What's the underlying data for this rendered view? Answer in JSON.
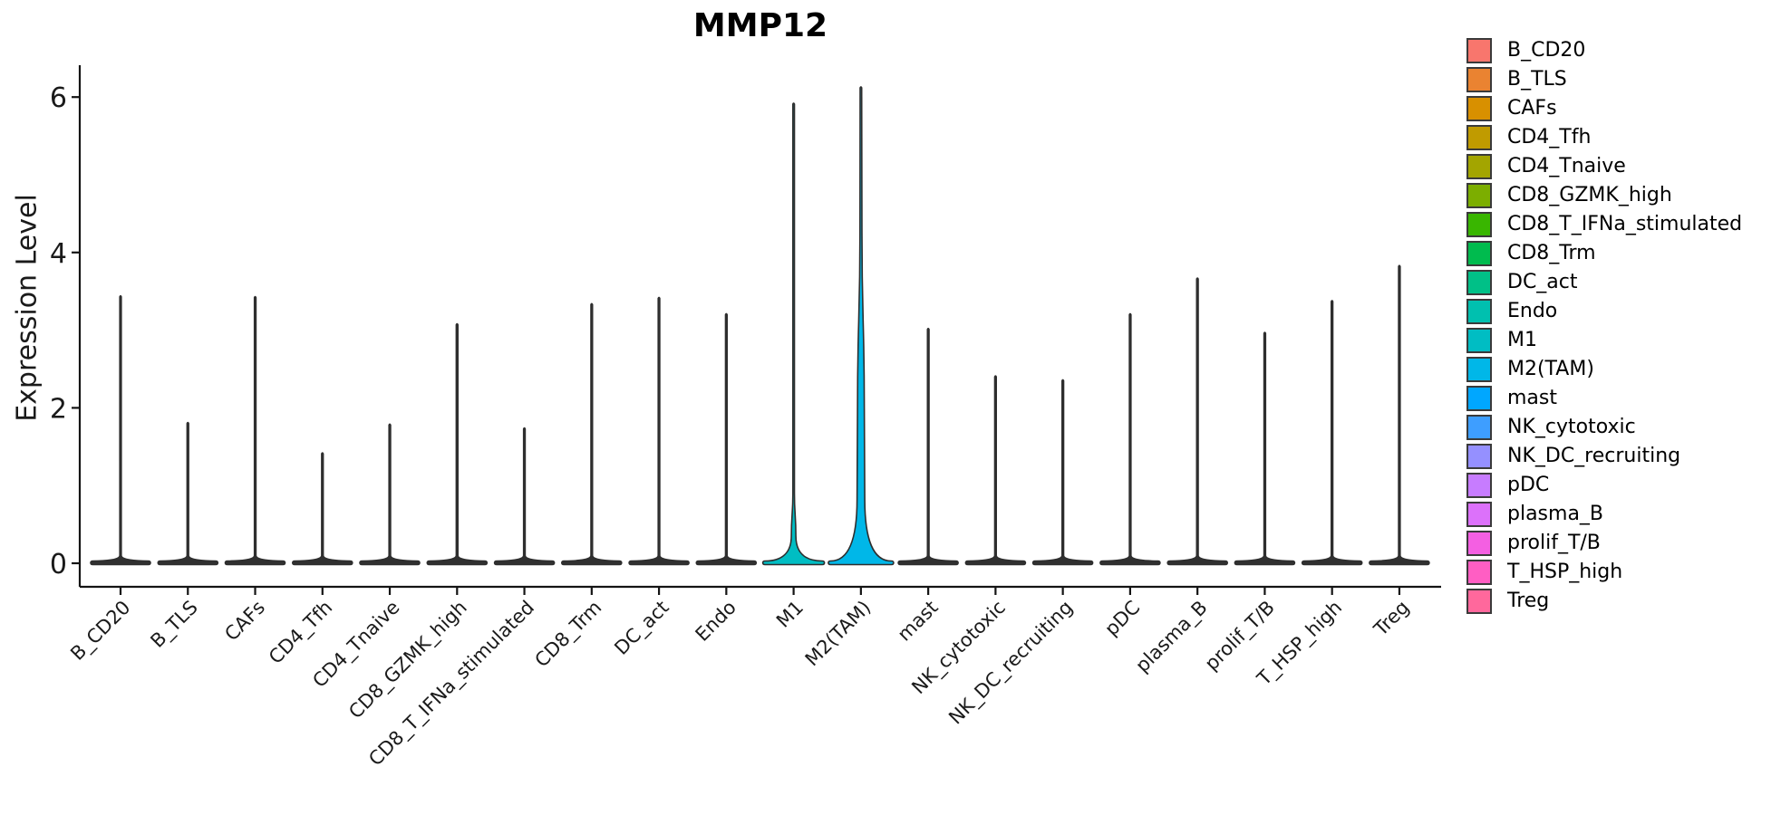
{
  "title": "MMP12",
  "chart_data": {
    "type": "violin",
    "title": "MMP12",
    "xlabel": "",
    "ylabel": "Expression Level",
    "ylim": [
      0,
      6.41
    ],
    "y_ticks": [
      0,
      2,
      4,
      6
    ],
    "grid": false,
    "legend_position": "right",
    "x_tick_angle_deg": 45,
    "categories": [
      "B_CD20",
      "B_TLS",
      "CAFs",
      "CD4_Tfh",
      "CD4_Tnaive",
      "CD8_GZMK_high",
      "CD8_T_IFNa_stimulated",
      "CD8_Trm",
      "DC_act",
      "Endo",
      "M1",
      "M2(TAM)",
      "mast",
      "NK_cytotoxic",
      "NK_DC_recruiting",
      "pDC",
      "plasma_B",
      "prolif_T/B",
      "T_HSP_high",
      "Treg"
    ],
    "colors": [
      "#F8766D",
      "#EA8331",
      "#D89000",
      "#C09B00",
      "#A3A500",
      "#7CAE00",
      "#39B600",
      "#00BB4E",
      "#00C087",
      "#00C0AF",
      "#00BDC3",
      "#00B7E8",
      "#00A7FF",
      "#3E9EFF",
      "#9590FF",
      "#C77CFF",
      "#DC71FA",
      "#F45FE2",
      "#FF5EC3",
      "#FF689C"
    ],
    "series": [
      {
        "name": "max_expression_level",
        "values": [
          3.43,
          1.8,
          3.42,
          1.41,
          1.78,
          3.07,
          1.73,
          3.33,
          3.41,
          3.2,
          5.91,
          6.12,
          3.01,
          2.4,
          2.35,
          3.2,
          3.66,
          2.96,
          3.37,
          3.82
        ]
      }
    ],
    "visible_nonzero_density_categories": [
      "M1",
      "M2(TAM)"
    ],
    "baseline_value": 0
  }
}
